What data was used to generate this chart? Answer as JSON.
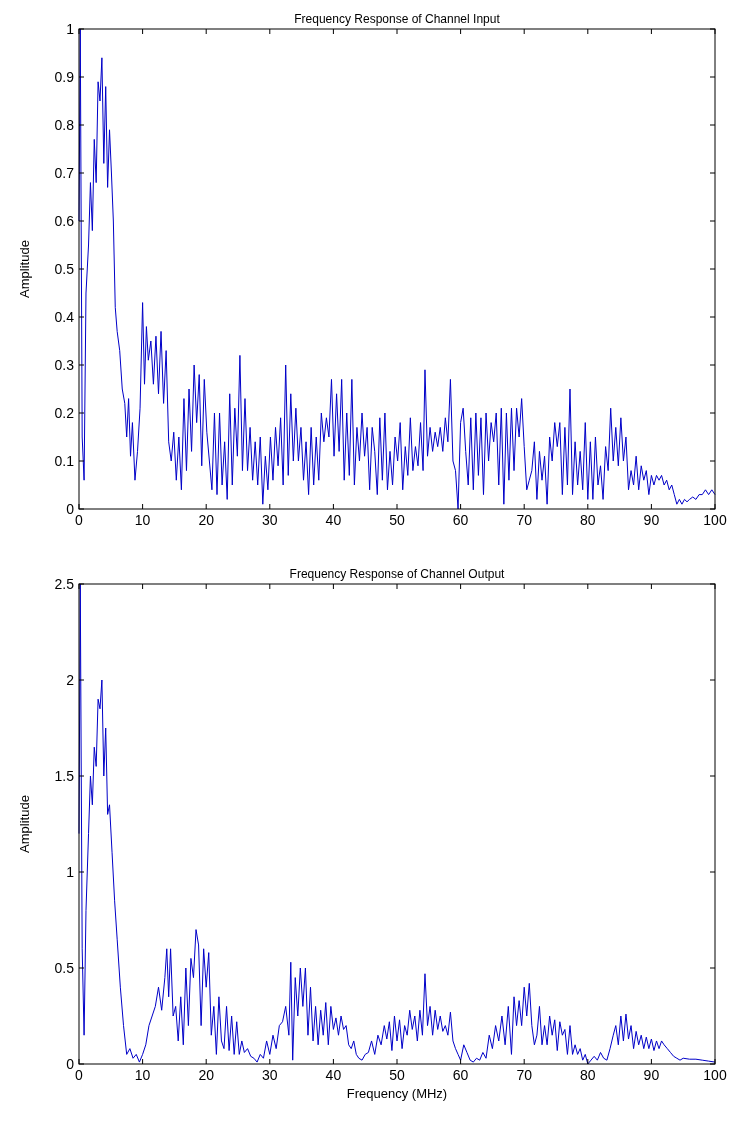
{
  "chart_data": [
    {
      "type": "line",
      "title": "Frequency Response of Channel Input",
      "ylabel": "Amplitude",
      "xlim": [
        0,
        100
      ],
      "xticks": [
        0,
        10,
        20,
        30,
        40,
        50,
        60,
        70,
        80,
        90,
        100
      ],
      "ylim": [
        0,
        1
      ],
      "yticks": [
        0,
        0.1,
        0.2,
        0.3,
        0.4,
        0.5,
        0.6,
        0.7,
        0.8,
        0.9,
        1
      ],
      "grid": false,
      "marker": "none",
      "line_style": "solid",
      "series": [
        {
          "color": "#0000c8",
          "x": [
            0,
            0.2,
            0.5,
            0.8,
            1.1,
            1.5,
            1.8,
            2.1,
            2.4,
            2.7,
            3.0,
            3.3,
            3.6,
            3.9,
            4.2,
            4.5,
            4.8,
            5.1,
            5.4,
            5.7,
            6.0,
            6.4,
            6.8,
            7.2,
            7.5,
            7.8,
            8.1,
            8.4,
            8.8,
            9.2,
            9.6,
            10.0,
            10.3,
            10.6,
            10.9,
            11.3,
            11.7,
            12.1,
            12.5,
            12.9,
            13.3,
            13.7,
            14.1,
            14.5,
            14.9,
            15.3,
            15.7,
            16.1,
            16.5,
            16.9,
            17.3,
            17.7,
            18.1,
            18.5,
            18.9,
            19.3,
            19.7,
            20.1,
            20.5,
            20.9,
            21.3,
            21.7,
            22.1,
            22.5,
            22.9,
            23.3,
            23.7,
            24.1,
            24.5,
            24.9,
            25.3,
            25.7,
            26.1,
            26.5,
            26.9,
            27.3,
            27.7,
            28.1,
            28.5,
            28.9,
            29.3,
            29.7,
            30.1,
            30.5,
            30.9,
            31.3,
            31.7,
            32.1,
            32.5,
            32.9,
            33.3,
            33.7,
            34.1,
            34.5,
            34.9,
            35.3,
            35.7,
            36.1,
            36.5,
            36.9,
            37.3,
            37.7,
            38.1,
            38.5,
            38.9,
            39.3,
            39.7,
            40.1,
            40.5,
            40.9,
            41.3,
            41.7,
            42.1,
            42.5,
            42.9,
            43.3,
            43.7,
            44.1,
            44.5,
            44.9,
            45.3,
            45.7,
            46.1,
            46.5,
            46.9,
            47.3,
            47.7,
            48.1,
            48.5,
            48.9,
            49.3,
            49.7,
            50.1,
            50.5,
            50.9,
            51.3,
            51.7,
            52.1,
            52.5,
            52.9,
            53.3,
            53.7,
            54.1,
            54.4,
            54.8,
            55.2,
            55.6,
            56.0,
            56.4,
            56.8,
            57.2,
            57.6,
            58.0,
            58.4,
            58.8,
            59.2,
            59.6,
            60.0,
            60.4,
            60.8,
            61.2,
            61.6,
            62.0,
            62.4,
            62.8,
            63.2,
            63.6,
            64.0,
            64.4,
            64.8,
            65.2,
            65.6,
            66.0,
            66.4,
            66.8,
            67.2,
            67.6,
            68.0,
            68.4,
            68.8,
            69.2,
            69.6,
            70.0,
            70.4,
            70.8,
            71.2,
            71.6,
            72.0,
            72.4,
            72.8,
            73.2,
            73.6,
            74.0,
            74.4,
            74.8,
            75.2,
            75.6,
            76.0,
            76.4,
            76.8,
            77.2,
            77.6,
            78.0,
            78.4,
            78.8,
            79.2,
            79.6,
            80.0,
            80.4,
            80.8,
            81.2,
            81.6,
            82.0,
            82.4,
            82.8,
            83.2,
            83.6,
            84.0,
            84.4,
            84.8,
            85.2,
            85.6,
            86.0,
            86.4,
            86.8,
            87.2,
            87.6,
            88.0,
            88.4,
            88.8,
            89.2,
            89.6,
            90.0,
            90.4,
            90.8,
            91.2,
            91.6,
            92.0,
            92.4,
            92.8,
            93.2,
            93.6,
            94.0,
            94.4,
            94.8,
            95.2,
            95.6,
            96.0,
            96.5,
            97.0,
            97.5,
            98.0,
            98.5,
            99.0,
            99.5,
            100
          ],
          "values": [
            0.6,
            1.0,
            0.15,
            0.06,
            0.45,
            0.55,
            0.68,
            0.58,
            0.77,
            0.68,
            0.89,
            0.85,
            0.94,
            0.72,
            0.88,
            0.67,
            0.79,
            0.7,
            0.6,
            0.42,
            0.37,
            0.33,
            0.25,
            0.22,
            0.15,
            0.23,
            0.11,
            0.18,
            0.06,
            0.12,
            0.21,
            0.43,
            0.26,
            0.38,
            0.31,
            0.35,
            0.26,
            0.36,
            0.24,
            0.37,
            0.22,
            0.33,
            0.14,
            0.1,
            0.16,
            0.06,
            0.15,
            0.04,
            0.23,
            0.08,
            0.25,
            0.12,
            0.3,
            0.18,
            0.28,
            0.09,
            0.27,
            0.16,
            0.1,
            0.04,
            0.2,
            0.03,
            0.2,
            0.05,
            0.14,
            0.02,
            0.24,
            0.05,
            0.21,
            0.11,
            0.32,
            0.08,
            0.23,
            0.08,
            0.17,
            0.06,
            0.14,
            0.05,
            0.15,
            0.01,
            0.11,
            0.04,
            0.15,
            0.06,
            0.17,
            0.09,
            0.19,
            0.05,
            0.3,
            0.07,
            0.24,
            0.1,
            0.21,
            0.1,
            0.17,
            0.06,
            0.14,
            0.03,
            0.17,
            0.05,
            0.15,
            0.06,
            0.2,
            0.14,
            0.19,
            0.15,
            0.27,
            0.11,
            0.24,
            0.12,
            0.27,
            0.06,
            0.2,
            0.07,
            0.27,
            0.05,
            0.17,
            0.1,
            0.2,
            0.11,
            0.17,
            0.04,
            0.17,
            0.12,
            0.03,
            0.19,
            0.06,
            0.2,
            0.04,
            0.12,
            0.05,
            0.15,
            0.1,
            0.18,
            0.04,
            0.13,
            0.07,
            0.19,
            0.08,
            0.13,
            0.09,
            0.18,
            0.08,
            0.29,
            0.11,
            0.17,
            0.12,
            0.16,
            0.13,
            0.17,
            0.12,
            0.19,
            0.14,
            0.27,
            0.1,
            0.08,
            0.0,
            0.18,
            0.21,
            0.12,
            0.05,
            0.19,
            0.04,
            0.2,
            0.07,
            0.19,
            0.03,
            0.2,
            0.1,
            0.18,
            0.14,
            0.2,
            0.05,
            0.21,
            0.01,
            0.2,
            0.06,
            0.21,
            0.08,
            0.21,
            0.15,
            0.23,
            0.13,
            0.04,
            0.06,
            0.08,
            0.14,
            0.02,
            0.12,
            0.06,
            0.11,
            0.01,
            0.15,
            0.1,
            0.18,
            0.13,
            0.18,
            0.03,
            0.17,
            0.05,
            0.25,
            0.03,
            0.14,
            0.05,
            0.12,
            0.04,
            0.18,
            0.02,
            0.14,
            0.02,
            0.15,
            0.05,
            0.09,
            0.02,
            0.13,
            0.08,
            0.21,
            0.1,
            0.17,
            0.09,
            0.19,
            0.1,
            0.15,
            0.04,
            0.08,
            0.05,
            0.11,
            0.04,
            0.09,
            0.06,
            0.08,
            0.03,
            0.07,
            0.05,
            0.07,
            0.06,
            0.07,
            0.05,
            0.06,
            0.04,
            0.05,
            0.03,
            0.01,
            0.02,
            0.01,
            0.02,
            0.015,
            0.02,
            0.025,
            0.02,
            0.03,
            0.03,
            0.04,
            0.03,
            0.04,
            0.03
          ]
        }
      ]
    },
    {
      "type": "line",
      "title": "Frequency Response of Channel Output",
      "xlabel": "Frequency (MHz)",
      "ylabel": "Amplitude",
      "xlim": [
        0,
        100
      ],
      "xticks": [
        0,
        10,
        20,
        30,
        40,
        50,
        60,
        70,
        80,
        90,
        100
      ],
      "ylim": [
        0,
        2.5
      ],
      "yticks": [
        0,
        0.5,
        1,
        1.5,
        2,
        2.5
      ],
      "grid": false,
      "marker": "none",
      "line_style": "solid",
      "series": [
        {
          "color": "#0000c8",
          "x": [
            0,
            0.2,
            0.5,
            0.8,
            1.1,
            1.5,
            1.8,
            2.1,
            2.4,
            2.7,
            3.0,
            3.3,
            3.6,
            3.9,
            4.2,
            4.5,
            4.8,
            5.2,
            5.6,
            6.0,
            6.5,
            7.0,
            7.5,
            8.0,
            8.5,
            9.0,
            9.5,
            10.0,
            10.5,
            11.0,
            11.5,
            12.0,
            12.5,
            13.0,
            13.5,
            13.8,
            14.1,
            14.4,
            14.8,
            15.2,
            15.6,
            16.0,
            16.4,
            16.8,
            17.2,
            17.6,
            18.0,
            18.4,
            18.8,
            19.2,
            19.6,
            20.0,
            20.4,
            20.8,
            21.2,
            21.6,
            22.0,
            22.4,
            22.8,
            23.2,
            23.6,
            24.0,
            24.4,
            24.8,
            25.2,
            25.6,
            26.0,
            26.5,
            27.0,
            27.5,
            28.0,
            28.5,
            29.0,
            29.5,
            30.0,
            30.5,
            31.0,
            31.5,
            32.0,
            32.5,
            33.0,
            33.3,
            33.6,
            34.0,
            34.4,
            34.8,
            35.2,
            35.6,
            36.0,
            36.4,
            36.8,
            37.2,
            37.6,
            38.0,
            38.4,
            38.8,
            39.2,
            39.6,
            40.0,
            40.4,
            40.8,
            41.2,
            41.6,
            42.0,
            42.4,
            42.8,
            43.2,
            43.6,
            44.0,
            44.5,
            45.0,
            45.5,
            46.0,
            46.5,
            47.0,
            47.5,
            48.0,
            48.4,
            48.8,
            49.2,
            49.6,
            50.0,
            50.4,
            50.8,
            51.2,
            51.6,
            52.0,
            52.4,
            52.8,
            53.2,
            53.6,
            54.0,
            54.4,
            54.8,
            55.2,
            55.6,
            56.0,
            56.4,
            56.8,
            57.2,
            57.6,
            58.0,
            58.4,
            58.8,
            59.2,
            59.6,
            60.0,
            60.5,
            61.0,
            61.5,
            62.0,
            62.5,
            63.0,
            63.5,
            64.0,
            64.5,
            65.0,
            65.5,
            66.0,
            66.5,
            67.0,
            67.5,
            68.0,
            68.4,
            68.8,
            69.2,
            69.6,
            70.0,
            70.4,
            70.8,
            71.2,
            71.6,
            72.0,
            72.4,
            72.8,
            73.2,
            73.6,
            74.0,
            74.4,
            74.8,
            75.2,
            75.6,
            76.0,
            76.4,
            76.8,
            77.2,
            77.6,
            78.0,
            78.4,
            78.8,
            79.2,
            79.6,
            80.0,
            80.5,
            81.0,
            81.5,
            82.0,
            82.5,
            83.0,
            83.5,
            84.0,
            84.4,
            84.8,
            85.2,
            85.6,
            86.0,
            86.4,
            86.8,
            87.2,
            87.6,
            88.0,
            88.4,
            88.8,
            89.2,
            89.6,
            90.0,
            90.4,
            90.8,
            91.2,
            91.6,
            92.0,
            92.5,
            93.0,
            93.5,
            94.0,
            94.5,
            95.0,
            96.0,
            97.0,
            98.0,
            99.0,
            100
          ],
          "values": [
            1.2,
            2.5,
            0.6,
            0.15,
            0.8,
            1.2,
            1.5,
            1.35,
            1.65,
            1.55,
            1.9,
            1.85,
            2.0,
            1.5,
            1.75,
            1.3,
            1.35,
            1.1,
            0.85,
            0.65,
            0.4,
            0.2,
            0.05,
            0.08,
            0.03,
            0.05,
            0.01,
            0.05,
            0.1,
            0.2,
            0.25,
            0.3,
            0.4,
            0.28,
            0.45,
            0.6,
            0.35,
            0.6,
            0.25,
            0.3,
            0.12,
            0.35,
            0.1,
            0.5,
            0.2,
            0.55,
            0.45,
            0.7,
            0.62,
            0.2,
            0.6,
            0.4,
            0.58,
            0.15,
            0.3,
            0.05,
            0.35,
            0.12,
            0.08,
            0.3,
            0.07,
            0.25,
            0.05,
            0.22,
            0.05,
            0.12,
            0.06,
            0.08,
            0.04,
            0.03,
            0.01,
            0.05,
            0.03,
            0.12,
            0.05,
            0.15,
            0.08,
            0.2,
            0.22,
            0.3,
            0.15,
            0.53,
            0.02,
            0.45,
            0.25,
            0.5,
            0.3,
            0.5,
            0.15,
            0.4,
            0.12,
            0.3,
            0.1,
            0.28,
            0.15,
            0.32,
            0.1,
            0.3,
            0.18,
            0.24,
            0.15,
            0.25,
            0.18,
            0.2,
            0.1,
            0.08,
            0.12,
            0.05,
            0.03,
            0.02,
            0.05,
            0.06,
            0.12,
            0.05,
            0.15,
            0.1,
            0.2,
            0.13,
            0.22,
            0.07,
            0.25,
            0.12,
            0.23,
            0.08,
            0.2,
            0.15,
            0.28,
            0.18,
            0.25,
            0.12,
            0.28,
            0.15,
            0.47,
            0.2,
            0.3,
            0.15,
            0.28,
            0.18,
            0.25,
            0.17,
            0.2,
            0.15,
            0.27,
            0.12,
            0.08,
            0.05,
            0.02,
            0.1,
            0.06,
            0.02,
            0.01,
            0.03,
            0.02,
            0.06,
            0.03,
            0.15,
            0.08,
            0.2,
            0.12,
            0.25,
            0.1,
            0.3,
            0.05,
            0.35,
            0.2,
            0.33,
            0.2,
            0.4,
            0.25,
            0.42,
            0.2,
            0.1,
            0.15,
            0.3,
            0.1,
            0.2,
            0.1,
            0.25,
            0.15,
            0.23,
            0.07,
            0.22,
            0.15,
            0.18,
            0.05,
            0.2,
            0.05,
            0.1,
            0.05,
            0.08,
            0.02,
            0.05,
            0.0,
            0.02,
            0.04,
            0.02,
            0.06,
            0.03,
            0.02,
            0.08,
            0.15,
            0.2,
            0.1,
            0.25,
            0.12,
            0.26,
            0.13,
            0.2,
            0.08,
            0.17,
            0.1,
            0.15,
            0.08,
            0.14,
            0.08,
            0.13,
            0.07,
            0.12,
            0.08,
            0.12,
            0.1,
            0.08,
            0.06,
            0.04,
            0.03,
            0.02,
            0.03,
            0.025,
            0.025,
            0.02,
            0.015,
            0.01
          ]
        }
      ]
    }
  ]
}
